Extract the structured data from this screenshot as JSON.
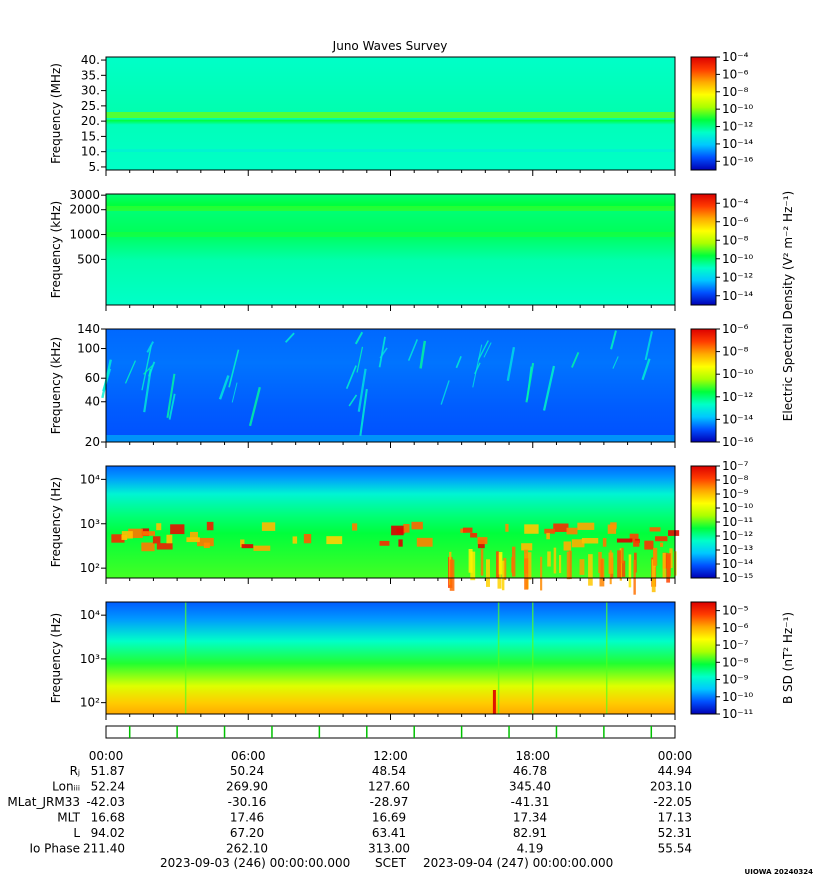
{
  "title": "Juno Waves Survey",
  "credit": "UIOWA 20240324",
  "palette": {
    "stops": [
      "#0000b4",
      "#0050ff",
      "#00c8ff",
      "#00ffc8",
      "#00ff3c",
      "#aaff00",
      "#ffff00",
      "#ffaa00",
      "#ff3c00",
      "#dc0000"
    ]
  },
  "colorbars": {
    "electric_label": "Electric Spectral Density (V² m⁻² Hz⁻¹)",
    "magnetic_label": "B SD (nT² Hz⁻¹)"
  },
  "time_axis": {
    "tick_labels": [
      "00:00",
      "06:00",
      "12:00",
      "18:00",
      "00:00"
    ],
    "tick_hours": [
      0,
      6,
      12,
      18,
      24
    ]
  },
  "ephemeris": {
    "rows": [
      {
        "label": "Rⱼ",
        "values": [
          "51.87",
          "50.24",
          "48.54",
          "46.78",
          "44.94"
        ]
      },
      {
        "label": "Lonᵢᵢᵢ",
        "values": [
          "52.24",
          "269.90",
          "127.60",
          "345.40",
          "203.10"
        ]
      },
      {
        "label": "MLat_JRM33",
        "values": [
          "-42.03",
          "-30.16",
          "-28.97",
          "-41.31",
          "-22.05"
        ]
      },
      {
        "label": "MLT",
        "values": [
          "16.68",
          "17.46",
          "16.69",
          "17.34",
          "17.13"
        ]
      },
      {
        "label": "L",
        "values": [
          "94.02",
          "67.20",
          "63.41",
          "82.91",
          "52.31"
        ]
      },
      {
        "label": "Io Phase",
        "values": [
          "211.40",
          "262.10",
          "313.00",
          "4.19",
          "55.54"
        ]
      }
    ]
  },
  "footer": {
    "start": "2023-09-03 (246) 00:00:00.000",
    "scet": "SCET",
    "end": "2023-09-04 (247) 00:00:00.000"
  },
  "chart_data": [
    {
      "type": "heatmap",
      "title": "Juno Waves Survey",
      "ylabel": "Frequency (MHz)",
      "y_scale": "linear",
      "ylim": [
        4,
        41
      ],
      "y_ticks": [
        5,
        10,
        15,
        20,
        25,
        30,
        35,
        40
      ],
      "y_tick_labels": [
        "5.",
        "10.",
        "15.",
        "20.",
        "25.",
        "30.",
        "35.",
        "40."
      ],
      "colorbar": {
        "scale": "log",
        "range_exp": [
          -17,
          -4
        ],
        "labels": [
          "10⁻⁴",
          "10⁻⁶",
          "10⁻⁸",
          "10⁻¹⁰",
          "10⁻¹²",
          "10⁻¹⁴",
          "10⁻¹⁶"
        ]
      }
    },
    {
      "type": "heatmap",
      "ylabel": "Frequency (kHz)",
      "y_scale": "log",
      "ylim": [
        140,
        3100
      ],
      "y_ticks": [
        500,
        1000,
        2000,
        3000
      ],
      "y_tick_labels": [
        "500",
        "1000",
        "2000",
        "3000"
      ],
      "colorbar": {
        "scale": "log",
        "range_exp": [
          -15,
          -3
        ],
        "labels": [
          "10⁻⁴",
          "10⁻⁶",
          "10⁻⁸",
          "10⁻¹⁰",
          "10⁻¹²",
          "10⁻¹⁴"
        ]
      }
    },
    {
      "type": "heatmap",
      "ylabel": "Frequency (kHz)",
      "y_scale": "log",
      "ylim": [
        20,
        140
      ],
      "y_ticks": [
        20,
        40,
        60,
        100,
        140
      ],
      "y_tick_labels": [
        "20",
        "40",
        "60",
        "100",
        "140"
      ],
      "colorbar": {
        "scale": "log",
        "range_exp": [
          -16,
          -6
        ],
        "labels": [
          "10⁻⁶",
          "10⁻⁸",
          "10⁻¹⁰",
          "10⁻¹²",
          "10⁻¹⁴",
          "10⁻¹⁶"
        ]
      }
    },
    {
      "type": "heatmap",
      "ylabel": "Frequency (Hz)",
      "y_scale": "log",
      "ylim": [
        60,
        20000
      ],
      "y_ticks": [
        100,
        1000,
        10000
      ],
      "y_tick_labels": [
        "10²",
        "10³",
        "10⁴"
      ],
      "colorbar": {
        "scale": "log",
        "range_exp": [
          -15,
          -7
        ],
        "labels": [
          "10⁻⁷",
          "10⁻⁸",
          "10⁻⁹",
          "10⁻¹⁰",
          "10⁻¹¹",
          "10⁻¹²",
          "10⁻¹³",
          "10⁻¹⁴",
          "10⁻¹⁵"
        ]
      }
    },
    {
      "type": "heatmap",
      "ylabel": "Frequency (Hz)",
      "y_scale": "log",
      "ylim": [
        55,
        20000
      ],
      "y_ticks": [
        100,
        1000,
        10000
      ],
      "y_tick_labels": [
        "10²",
        "10³",
        "10⁴"
      ],
      "colorbar": {
        "scale": "log",
        "range_exp": [
          -11,
          -4.5
        ],
        "labels": [
          "10⁻⁵",
          "10⁻⁶",
          "10⁻⁷",
          "10⁻⁸",
          "10⁻⁹",
          "10⁻¹⁰",
          "10⁻¹¹"
        ]
      }
    }
  ]
}
